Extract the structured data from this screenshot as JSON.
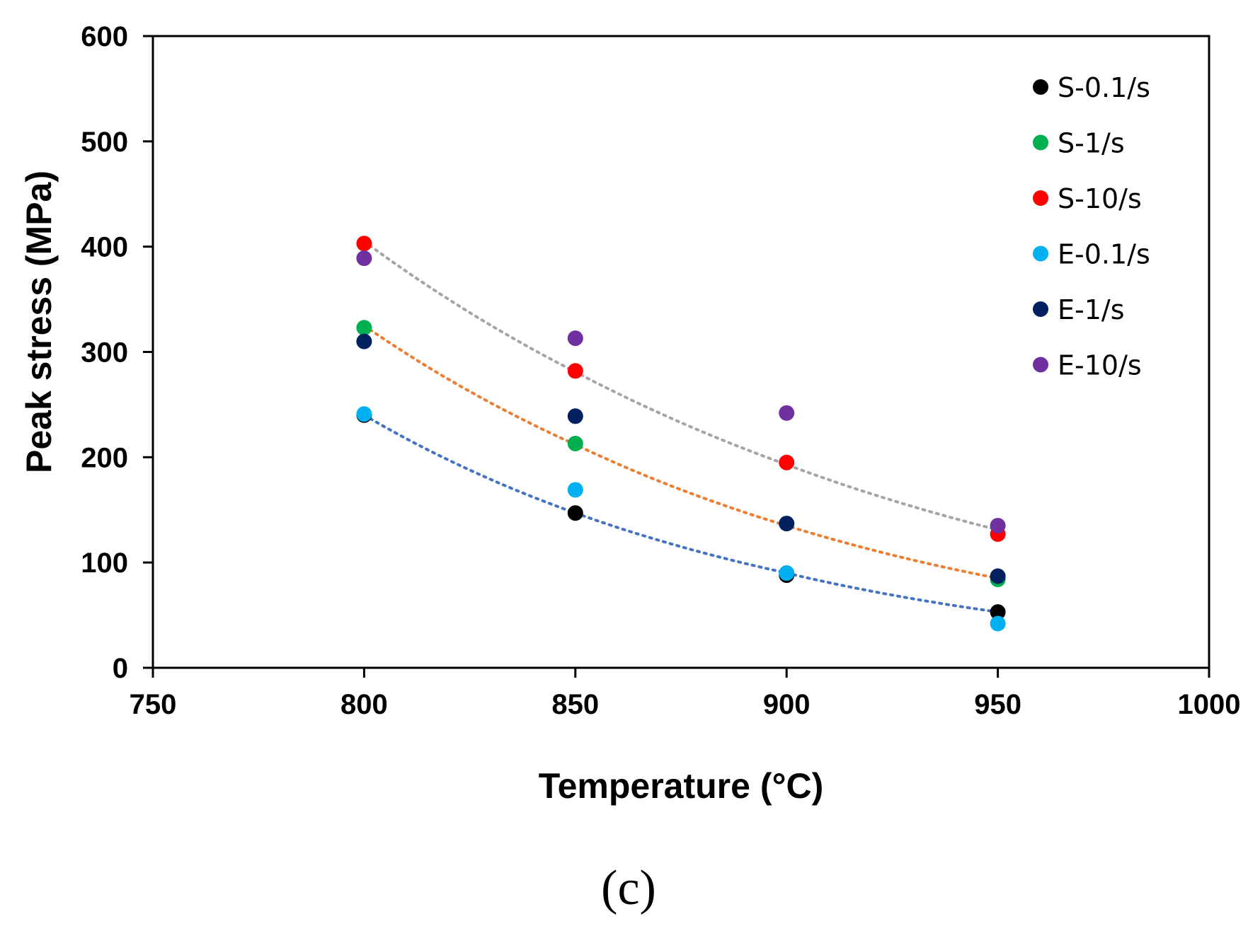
{
  "chart_data": {
    "type": "scatter",
    "title": "",
    "xlabel": "Temperature (°C)",
    "ylabel": "Peak stress (MPa)",
    "xlim": [
      750,
      1000
    ],
    "ylim": [
      0,
      600
    ],
    "xticks": [
      750,
      800,
      850,
      900,
      950,
      1000
    ],
    "yticks": [
      0,
      100,
      200,
      300,
      400,
      500,
      600
    ],
    "x": [
      800,
      850,
      900,
      950
    ],
    "legend_position": "top-right",
    "grid": false,
    "series": [
      {
        "name": "S-0.1/s",
        "color": "#000000",
        "values": [
          240,
          147,
          88,
          53
        ]
      },
      {
        "name": "S-1/s",
        "color": "#00b050",
        "values": [
          323,
          213,
          137,
          84
        ]
      },
      {
        "name": "S-10/s",
        "color": "#ff0000",
        "values": [
          403,
          282,
          195,
          127
        ]
      },
      {
        "name": "E-0.1/s",
        "color": "#00b0f0",
        "values": [
          241,
          169,
          90,
          42
        ]
      },
      {
        "name": "E-1/s",
        "color": "#002060",
        "values": [
          310,
          239,
          137,
          87
        ]
      },
      {
        "name": "E-10/s",
        "color": "#7030a0",
        "values": [
          389,
          313,
          242,
          135
        ]
      }
    ],
    "trendlines": [
      {
        "name": "lower-trend",
        "color": "#4472c4",
        "values": [
          240,
          147,
          90,
          53
        ]
      },
      {
        "name": "middle-trend",
        "color": "#ed7d31",
        "values": [
          325,
          212,
          135,
          85
        ]
      },
      {
        "name": "upper-trend",
        "color": "#a5a5a5",
        "values": [
          405,
          281,
          193,
          131
        ]
      }
    ]
  },
  "panel_label": "(c)"
}
